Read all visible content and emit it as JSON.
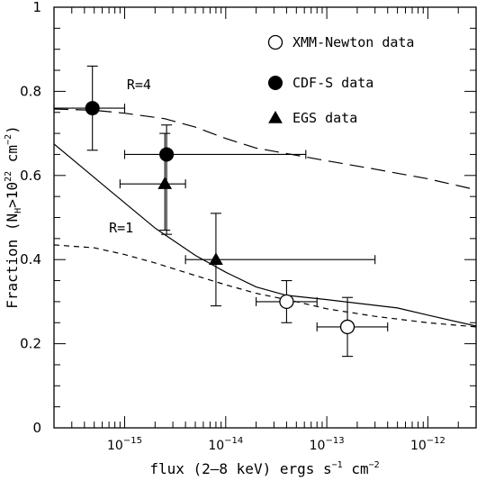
{
  "chart_data": {
    "type": "scatter",
    "xlabel": "flux (2–8 keV) ergs s⁻¹ cm⁻²",
    "ylabel": "Fraction  (N_H>10^22 cm^-2)",
    "ylabel_parts": {
      "pre": "Fraction  (N",
      "sub": "H",
      "mid": ">10",
      "sup": "22",
      "post": " cm",
      "sup2": "−2",
      "end": ")"
    },
    "xlabel_parts": {
      "pre": "flux (2–8 keV) ergs s",
      "sup1": "−1",
      "mid": " cm",
      "sup2": "−2"
    },
    "xscale": "log",
    "xlim": [
      2e-16,
      3e-12
    ],
    "ylim": [
      0,
      1
    ],
    "x_ticks": [
      {
        "exp": -15,
        "label_base": "10",
        "label_exp": "−15"
      },
      {
        "exp": -14,
        "label_base": "10",
        "label_exp": "−14"
      },
      {
        "exp": -13,
        "label_base": "10",
        "label_exp": "−13"
      },
      {
        "exp": -12,
        "label_base": "10",
        "label_exp": "−12"
      }
    ],
    "y_ticks": [
      {
        "value": 0,
        "label": "0"
      },
      {
        "value": 0.2,
        "label": "0.2"
      },
      {
        "value": 0.4,
        "label": "0.4"
      },
      {
        "value": 0.6,
        "label": "0.6"
      },
      {
        "value": 0.8,
        "label": "0.8"
      },
      {
        "value": 1,
        "label": "1"
      }
    ],
    "legend_position": "top-right",
    "series": [
      {
        "name": "XMM-Newton data",
        "marker": "open-circle",
        "points": [
          {
            "x": 4e-14,
            "y": 0.3,
            "xerr": [
              2e-14,
              8e-14
            ],
            "yerr": [
              0.25,
              0.35
            ]
          },
          {
            "x": 1.6e-13,
            "y": 0.24,
            "xerr": [
              8e-14,
              4e-13
            ],
            "yerr": [
              0.17,
              0.31
            ]
          }
        ]
      },
      {
        "name": "CDF-S data",
        "marker": "filled-circle",
        "points": [
          {
            "x": 4.8e-16,
            "y": 0.76,
            "xerr": [
              2e-16,
              1e-15
            ],
            "yerr": [
              0.66,
              0.86
            ]
          },
          {
            "x": 2.6e-15,
            "y": 0.65,
            "xerr": [
              1e-15,
              6.2e-14
            ],
            "yerr": [
              0.46,
              0.72
            ]
          }
        ]
      },
      {
        "name": "EGS data",
        "marker": "filled-triangle",
        "points": [
          {
            "x": 2.5e-15,
            "y": 0.58,
            "xerr": [
              9e-16,
              4e-15
            ],
            "yerr": [
              0.47,
              0.7
            ]
          },
          {
            "x": 8e-15,
            "y": 0.4,
            "xerr": [
              4e-15,
              3e-13
            ],
            "yerr": [
              0.29,
              0.51
            ]
          }
        ]
      }
    ],
    "curves": [
      {
        "style": "long-dash",
        "label": "R=4",
        "points": [
          [
            2e-16,
            0.758
          ],
          [
            5e-16,
            0.755
          ],
          [
            1e-15,
            0.748
          ],
          [
            2.5e-15,
            0.735
          ],
          [
            5e-15,
            0.715
          ],
          [
            1e-14,
            0.688
          ],
          [
            2e-14,
            0.665
          ],
          [
            5e-14,
            0.648
          ],
          [
            1e-13,
            0.635
          ],
          [
            3e-13,
            0.615
          ],
          [
            1e-12,
            0.592
          ],
          [
            3e-12,
            0.566
          ]
        ]
      },
      {
        "style": "short-dash",
        "label": "R=1",
        "points": [
          [
            2e-16,
            0.435
          ],
          [
            5e-16,
            0.428
          ],
          [
            1e-15,
            0.412
          ],
          [
            2e-15,
            0.392
          ],
          [
            5e-15,
            0.362
          ],
          [
            1e-14,
            0.34
          ],
          [
            2e-14,
            0.32
          ],
          [
            5e-14,
            0.3
          ],
          [
            1e-13,
            0.283
          ],
          [
            3e-13,
            0.265
          ],
          [
            1e-12,
            0.25
          ],
          [
            3e-12,
            0.24
          ]
        ]
      },
      {
        "style": "solid",
        "label": "",
        "points": [
          [
            2e-16,
            0.675
          ],
          [
            5e-16,
            0.595
          ],
          [
            1e-15,
            0.535
          ],
          [
            2e-15,
            0.475
          ],
          [
            5e-15,
            0.41
          ],
          [
            1e-14,
            0.37
          ],
          [
            2e-14,
            0.335
          ],
          [
            4e-14,
            0.315
          ],
          [
            1e-13,
            0.305
          ],
          [
            5e-13,
            0.285
          ],
          [
            1e-12,
            0.268
          ],
          [
            3e-12,
            0.242
          ]
        ]
      }
    ],
    "curve_labels": [
      {
        "text": "R=4",
        "x": 1.05e-15,
        "y": 0.805
      },
      {
        "text": "R=1",
        "x": 7e-16,
        "y": 0.465
      }
    ]
  }
}
